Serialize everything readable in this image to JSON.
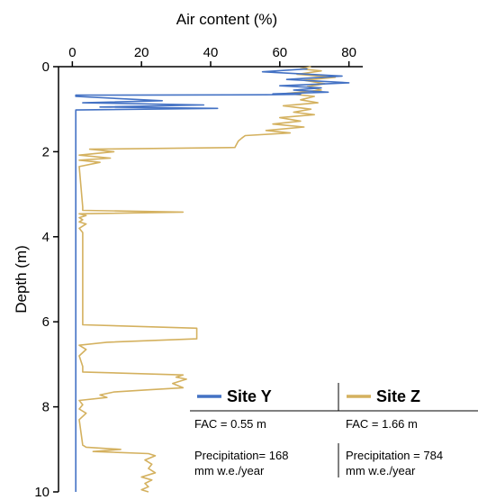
{
  "chart_data": {
    "type": "line",
    "xlabel": "Air content (%)",
    "ylabel": "Depth (m)",
    "xlim": [
      -4,
      84
    ],
    "ylim": [
      0,
      10
    ],
    "y_inverted": true,
    "x_axis_position": "top",
    "x_ticks": [
      "0",
      "20",
      "40",
      "60",
      "80"
    ],
    "y_ticks": [
      "0",
      "2",
      "4",
      "6",
      "8",
      "10"
    ],
    "grid": false,
    "legend_position": "bottom-right",
    "series": [
      {
        "name": "Site Y",
        "color": "#4472c4",
        "x_air_content": [
          68,
          55,
          78,
          62,
          80,
          60,
          72,
          64,
          74,
          58,
          66,
          56,
          1,
          1,
          26,
          3,
          38,
          8,
          42,
          1,
          1,
          1
        ],
        "y_depth": [
          0.05,
          0.12,
          0.22,
          0.3,
          0.38,
          0.45,
          0.5,
          0.55,
          0.6,
          0.64,
          0.65,
          0.66,
          0.67,
          0.7,
          0.8,
          0.85,
          0.9,
          0.95,
          0.98,
          1.02,
          3.0,
          10.0
        ]
      },
      {
        "name": "Site Z",
        "color": "#d4b15f",
        "x_air_content": [
          69,
          66,
          72,
          65,
          76,
          67,
          73,
          68,
          72,
          62,
          70,
          66,
          71,
          61,
          69,
          64,
          70,
          60,
          66,
          58,
          67,
          56,
          63,
          50,
          49,
          48,
          47,
          5,
          12,
          2,
          11,
          2,
          8,
          2,
          3,
          3,
          32,
          2,
          4,
          2,
          3,
          2,
          4,
          2,
          3,
          3,
          36,
          36,
          10,
          2,
          4,
          2,
          3,
          3,
          32,
          30,
          33,
          29,
          32,
          22,
          12,
          8,
          10,
          2,
          3,
          2,
          4,
          2,
          3,
          4,
          14,
          6,
          22,
          24,
          21,
          23,
          22,
          24,
          20,
          23,
          21,
          22,
          20,
          22
        ],
        "y_depth": [
          0.0,
          0.05,
          0.1,
          0.18,
          0.25,
          0.32,
          0.4,
          0.47,
          0.55,
          0.63,
          0.7,
          0.78,
          0.85,
          0.92,
          1.0,
          1.07,
          1.13,
          1.2,
          1.28,
          1.35,
          1.42,
          1.5,
          1.56,
          1.62,
          1.68,
          1.75,
          1.9,
          1.94,
          2.0,
          2.08,
          2.15,
          2.2,
          2.25,
          2.35,
          3.3,
          3.38,
          3.42,
          3.46,
          3.5,
          3.55,
          3.6,
          3.65,
          3.7,
          3.8,
          3.9,
          6.07,
          6.15,
          6.4,
          6.48,
          6.55,
          6.65,
          6.8,
          7.05,
          7.18,
          7.25,
          7.3,
          7.35,
          7.45,
          7.55,
          7.6,
          7.65,
          7.72,
          7.78,
          7.85,
          7.95,
          8.05,
          8.15,
          8.3,
          8.9,
          8.95,
          9.0,
          9.05,
          9.1,
          9.15,
          9.25,
          9.35,
          9.45,
          9.55,
          9.65,
          9.72,
          9.8,
          9.88,
          9.95,
          10.0
        ]
      }
    ]
  },
  "legend": {
    "site_y": {
      "name": "Site Y",
      "fac": "FAC = 0.55 m",
      "precip_line1": "Precipitation= 168",
      "precip_line2": "mm w.e./year"
    },
    "site_z": {
      "name": "Site Z",
      "fac": "FAC = 1.66 m",
      "precip_line1": "Precipitation = 784",
      "precip_line2": "mm w.e./year"
    }
  }
}
